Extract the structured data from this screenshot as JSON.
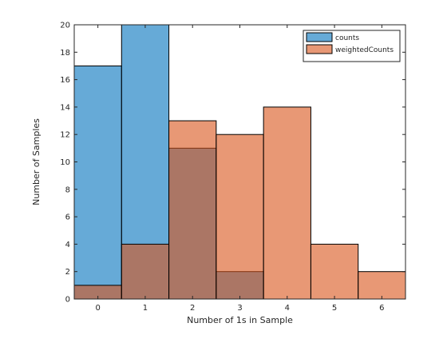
{
  "chart_data": {
    "type": "bar",
    "categories": [
      "0",
      "1",
      "2",
      "3",
      "4",
      "5",
      "6"
    ],
    "series": [
      {
        "name": "counts",
        "values": [
          17,
          20,
          11,
          2,
          0,
          0,
          0
        ],
        "color": "#0072BD"
      },
      {
        "name": "weightedCounts",
        "values": [
          1,
          4,
          13,
          12,
          14,
          4,
          2
        ],
        "color": "#D95319"
      }
    ],
    "xlabel": "Number of 1s in Sample",
    "ylabel": "Number of Samples",
    "xlim": [
      -0.5,
      6.5
    ],
    "ylim": [
      0,
      20
    ],
    "yticks": [
      0,
      2,
      4,
      6,
      8,
      10,
      12,
      14,
      16,
      18,
      20
    ],
    "xticks": [
      0,
      1,
      2,
      3,
      4,
      5,
      6
    ],
    "legend_position": "top-right",
    "grid": false
  }
}
